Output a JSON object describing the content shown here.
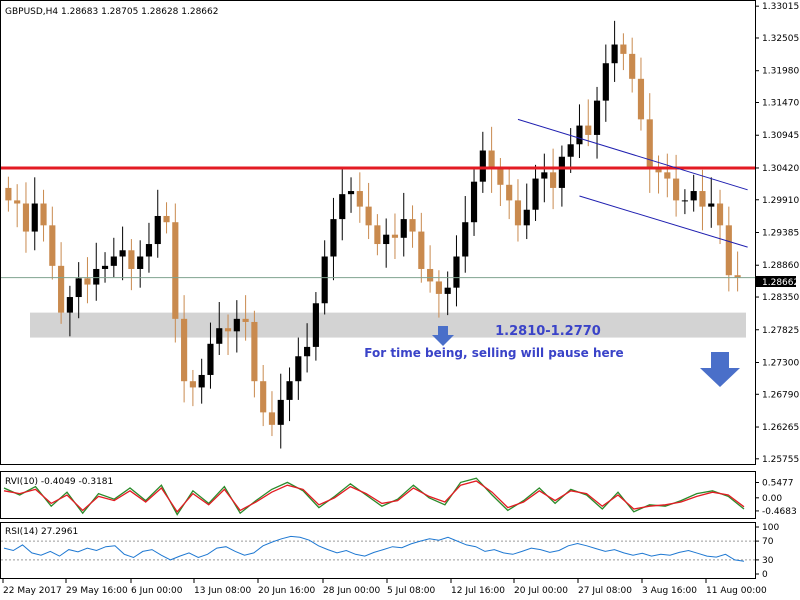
{
  "colors": {
    "candle_up": "#000000",
    "candle_down": "#c98a4e",
    "resistance": "#e31b23",
    "channel": "#1f1fb0",
    "zone": "#d3d3d3",
    "annotation": "#3a43c8",
    "current_price_line": "#7fa38f",
    "rvi_main": "#2a8a2a",
    "rvi_signal": "#e31b23",
    "rsi": "#1e78d2",
    "grid_dash": "#9a9a9a"
  },
  "chart_data": [
    {
      "type": "candlestick",
      "header": "GBPUSD,H4  1.28683 1.28705 1.28628 1.28662",
      "ylim": [
        1.2572,
        1.3305
      ],
      "y_ticks": [
        "1.33015",
        "1.32505",
        "1.31980",
        "1.31470",
        "1.30945",
        "1.30420",
        "1.29910",
        "1.29385",
        "1.28860",
        "1.28350",
        "1.27825",
        "1.27300",
        "1.26790",
        "1.26265",
        "1.25755"
      ],
      "current_price": "1.28662",
      "x_ticks": [
        "22 May 2017",
        "29 May 16:00",
        "6 Jun 00:00",
        "13 Jun 08:00",
        "20 Jun 16:00",
        "28 Jun 00:00",
        "5 Jul 08:00",
        "12 Jul 16:00",
        "20 Jul 00:00",
        "27 Jul 08:00",
        "3 Aug 16:00",
        "11 Aug 00:00"
      ],
      "closes": [
        1.299,
        1.2985,
        1.294,
        1.2985,
        1.295,
        1.2885,
        1.281,
        1.2835,
        1.2865,
        1.2855,
        1.288,
        1.2885,
        1.29,
        1.291,
        1.288,
        1.29,
        1.292,
        1.2965,
        1.2955,
        1.28,
        1.27,
        1.269,
        1.271,
        1.276,
        1.2785,
        1.278,
        1.28,
        1.2795,
        1.27,
        1.265,
        1.263,
        1.267,
        1.27,
        1.274,
        1.2755,
        1.2825,
        1.29,
        1.296,
        1.3,
        1.3005,
        1.298,
        1.295,
        1.292,
        1.2935,
        1.293,
        1.296,
        1.294,
        1.288,
        1.286,
        1.284,
        1.285,
        1.29,
        1.2955,
        1.302,
        1.307,
        1.304,
        1.3015,
        1.299,
        1.295,
        1.2975,
        1.3025,
        1.3035,
        1.301,
        1.306,
        1.308,
        1.311,
        1.3095,
        1.315,
        1.321,
        1.324,
        1.3225,
        1.3185,
        1.312,
        1.304,
        1.3035,
        1.3025,
        1.299,
        1.299,
        1.3005,
        1.298,
        1.2985,
        1.295,
        1.287,
        1.2866
      ],
      "resistance": 1.3042,
      "support_zone": [
        1.277,
        1.281
      ],
      "channel_upper": [
        {
          "i": 58,
          "v": 1.312
        },
        {
          "i": 83,
          "v": 1.3007
        }
      ],
      "channel_lower": [
        {
          "i": 65,
          "v": 1.2997
        },
        {
          "i": 83,
          "v": 1.2915
        }
      ],
      "annotations": {
        "zone_label": "1.2810-1.2770",
        "note": "For time being, selling will pause here"
      }
    },
    {
      "type": "line",
      "header": "RVI(10) -0.4049 -0.3181",
      "ylim": [
        -0.65,
        0.78
      ],
      "y_ticks": [
        "0.5477",
        "0.00",
        "-0.4683"
      ],
      "series": [
        {
          "values": [
            0.35,
            0.1,
            0.4,
            -0.3,
            0.2,
            -0.55,
            0.15,
            -0.05,
            0.35,
            -0.1,
            0.45,
            -0.6,
            0.25,
            -0.2,
            0.4,
            -0.55,
            -0.1,
            0.3,
            0.55,
            0.25,
            -0.35,
            0.05,
            0.5,
            0.1,
            -0.3,
            -0.05,
            0.45,
            0.0,
            -0.25,
            0.55,
            0.7,
            0.1,
            -0.45,
            -0.1,
            0.35,
            -0.2,
            0.3,
            0.1,
            -0.4,
            0.2,
            -0.5,
            -0.25,
            -0.3,
            -0.1,
            0.15,
            0.25,
            0.05,
            -0.4
          ]
        },
        {
          "values": [
            0.25,
            0.15,
            0.3,
            -0.2,
            0.1,
            -0.45,
            0.05,
            -0.1,
            0.25,
            -0.15,
            0.35,
            -0.5,
            0.15,
            -0.25,
            0.3,
            -0.45,
            -0.15,
            0.2,
            0.45,
            0.3,
            -0.25,
            0.0,
            0.4,
            0.15,
            -0.2,
            -0.1,
            0.35,
            0.05,
            -0.15,
            0.45,
            0.6,
            0.2,
            -0.35,
            -0.15,
            0.25,
            -0.1,
            0.25,
            0.15,
            -0.3,
            0.1,
            -0.4,
            -0.3,
            -0.25,
            -0.15,
            0.05,
            0.2,
            0.1,
            -0.32
          ]
        }
      ]
    },
    {
      "type": "line",
      "header": "RSI(14) 27.2961",
      "ylim": [
        0,
        100
      ],
      "y_ticks": [
        "100",
        "70",
        "30",
        "0"
      ],
      "levels": [
        70,
        30
      ],
      "values": [
        55,
        50,
        62,
        45,
        40,
        48,
        38,
        52,
        47,
        55,
        50,
        58,
        60,
        42,
        35,
        48,
        52,
        40,
        30,
        38,
        45,
        35,
        42,
        55,
        58,
        48,
        40,
        45,
        60,
        68,
        75,
        80,
        78,
        72,
        60,
        52,
        45,
        50,
        42,
        38,
        46,
        52,
        58,
        56,
        64,
        70,
        75,
        72,
        78,
        70,
        62,
        58,
        48,
        52,
        45,
        42,
        48,
        55,
        52,
        46,
        50,
        60,
        65,
        60,
        54,
        48,
        52,
        45,
        40,
        44,
        38,
        42,
        40,
        46,
        50,
        44,
        38,
        36,
        42,
        30,
        27
      ]
    }
  ]
}
